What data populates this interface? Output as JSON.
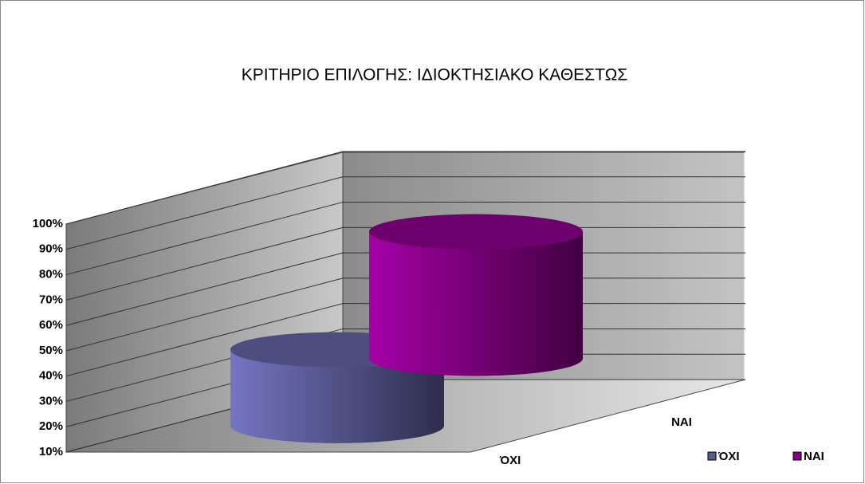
{
  "chart_data": {
    "type": "cylinder3d",
    "title": "ΚΡΙΤΗΡΙΟ ΕΠΙΛΟΓΗΣ: ΙΔΙΟΚΤΗΣΙΑΚΟ ΚΑΘΕΣΤΩΣ",
    "categories": [
      null
    ],
    "series": [
      {
        "name": "ΌΧΙ",
        "color": "#5a5a96",
        "values": [
          40
        ]
      },
      {
        "name": "ΝΑΙ",
        "color": "#800080",
        "values": [
          60
        ]
      }
    ],
    "ylim": [
      10,
      100
    ],
    "yticks": [
      {
        "value": 10,
        "label": "10%"
      },
      {
        "value": 20,
        "label": "20%"
      },
      {
        "value": 30,
        "label": "30%"
      },
      {
        "value": 40,
        "label": "40%"
      },
      {
        "value": 50,
        "label": "50%"
      },
      {
        "value": 60,
        "label": "60%"
      },
      {
        "value": 70,
        "label": "70%"
      },
      {
        "value": 80,
        "label": "80%"
      },
      {
        "value": 90,
        "label": "90%"
      },
      {
        "value": 100,
        "label": "100%"
      }
    ],
    "grid": true
  }
}
